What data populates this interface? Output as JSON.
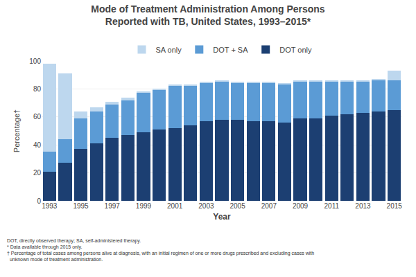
{
  "chart_data": {
    "type": "bar",
    "stacked": true,
    "title": "Mode of Treatment Administration Among Persons",
    "subtitle": "Reported with TB, United States, 1993–2015*",
    "xlabel": "Year",
    "ylabel": "Percentage†",
    "categories": [
      "1993",
      null,
      "1995",
      null,
      "1997",
      null,
      "1999",
      null,
      "2001",
      null,
      "2003",
      null,
      "2005",
      null,
      "2007",
      null,
      "2009",
      null,
      "2011",
      null,
      "2013",
      null,
      "2015"
    ],
    "series": [
      {
        "name": "DOT only",
        "color": "#1c3f72",
        "values": [
          21,
          27,
          37,
          41,
          45,
          47,
          49,
          51,
          52,
          54,
          57,
          58,
          58,
          57,
          57,
          56,
          59,
          59,
          61,
          62,
          63,
          64,
          65
        ]
      },
      {
        "name": "DOT + SA",
        "color": "#5b9bd5",
        "values": [
          14,
          17,
          22,
          23,
          24,
          25,
          28,
          28,
          30,
          28,
          27,
          27,
          26,
          27,
          27,
          27,
          26,
          26,
          24,
          23,
          22,
          22,
          21
        ]
      },
      {
        "name": "SA only",
        "color": "#bdd7ee",
        "values": [
          63,
          47,
          5,
          3,
          2,
          2,
          1,
          1,
          1,
          1,
          1,
          1,
          1,
          1,
          1,
          1,
          1,
          1,
          1,
          1,
          1,
          1,
          7
        ]
      }
    ],
    "ylim": [
      0,
      100
    ],
    "yticks": [
      0,
      20,
      40,
      60,
      80,
      100
    ],
    "grid": true,
    "legend": "top",
    "annotations": [
      "DOT, directly observed therapy; SA, self-administered therapy.",
      "* Data available through 2015 only.",
      "† Percentage of total cases among persons alive at diagnosis, with an initial regimen of one or more drugs prescribed and excluding cases with\n  unknown mode of treatment administration."
    ]
  }
}
